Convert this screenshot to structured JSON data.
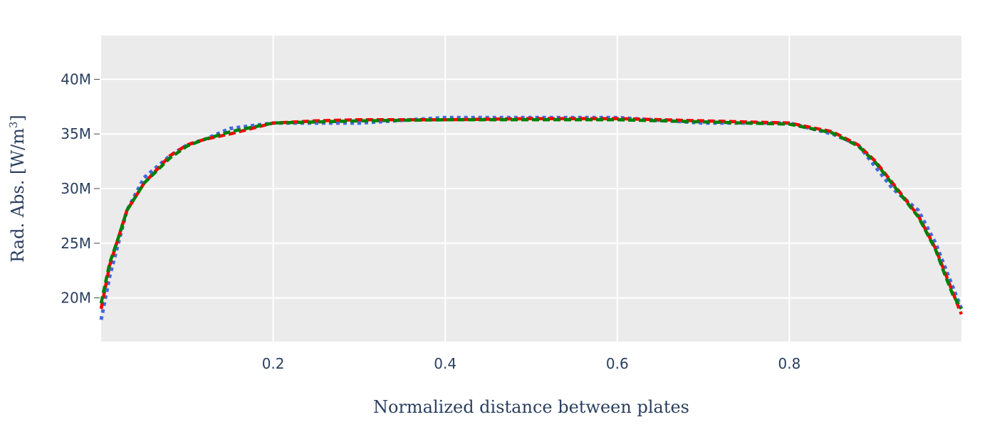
{
  "chart_data": {
    "type": "line",
    "title": "",
    "xlabel": "Normalized distance between plates",
    "ylabel": "Rad. Abs. [W/m",
    "ylabel_superscript": "3",
    "ylabel_end": "]",
    "xlim": [
      0.0,
      1.0
    ],
    "ylim": [
      16000000,
      44000000
    ],
    "x_ticks": [
      {
        "value": 0.2,
        "label": "0.2"
      },
      {
        "value": 0.4,
        "label": "0.4"
      },
      {
        "value": 0.6,
        "label": "0.6"
      },
      {
        "value": 0.8,
        "label": "0.8"
      }
    ],
    "y_ticks": [
      {
        "value": 20000000,
        "label": "20M"
      },
      {
        "value": 25000000,
        "label": "25M"
      },
      {
        "value": 30000000,
        "label": "30M"
      },
      {
        "value": 35000000,
        "label": "35M"
      },
      {
        "value": 40000000,
        "label": "40M"
      }
    ],
    "grid": true,
    "plot_background": "#ebebeb",
    "grid_color": "#ffffff",
    "x": [
      0.0,
      0.01,
      0.02,
      0.03,
      0.05,
      0.08,
      0.1,
      0.12,
      0.15,
      0.2,
      0.25,
      0.3,
      0.4,
      0.5,
      0.6,
      0.7,
      0.8,
      0.85,
      0.88,
      0.9,
      0.92,
      0.95,
      0.97,
      0.98,
      0.99,
      1.0
    ],
    "series": [
      {
        "color": "#4169e1",
        "dash": "dot",
        "values": [
          18000000,
          22000000,
          25000000,
          28000000,
          31000000,
          33000000,
          34000000,
          34500000,
          35500000,
          36000000,
          36000000,
          36000000,
          36500000,
          36500000,
          36500000,
          36000000,
          36000000,
          35000000,
          34000000,
          32000000,
          30000000,
          28000000,
          25000000,
          23000000,
          21000000,
          19000000
        ]
      },
      {
        "color": "#ff0000",
        "dash": "dash",
        "values": [
          19000000,
          23000000,
          25500000,
          28000000,
          30500000,
          33000000,
          34000000,
          34500000,
          35000000,
          36000000,
          36200000,
          36300000,
          36300000,
          36400000,
          36400000,
          36200000,
          36000000,
          35200000,
          34000000,
          32500000,
          30500000,
          27500000,
          24500000,
          22500000,
          20500000,
          18500000
        ]
      },
      {
        "color": "#008000",
        "dash": "dash",
        "values": [
          19500000,
          23200000,
          25500000,
          28000000,
          30500000,
          32800000,
          33900000,
          34500000,
          35200000,
          36000000,
          36100000,
          36200000,
          36300000,
          36300000,
          36300000,
          36100000,
          35900000,
          35100000,
          33900000,
          32400000,
          30400000,
          27400000,
          24400000,
          22300000,
          20300000,
          19000000
        ]
      }
    ]
  }
}
